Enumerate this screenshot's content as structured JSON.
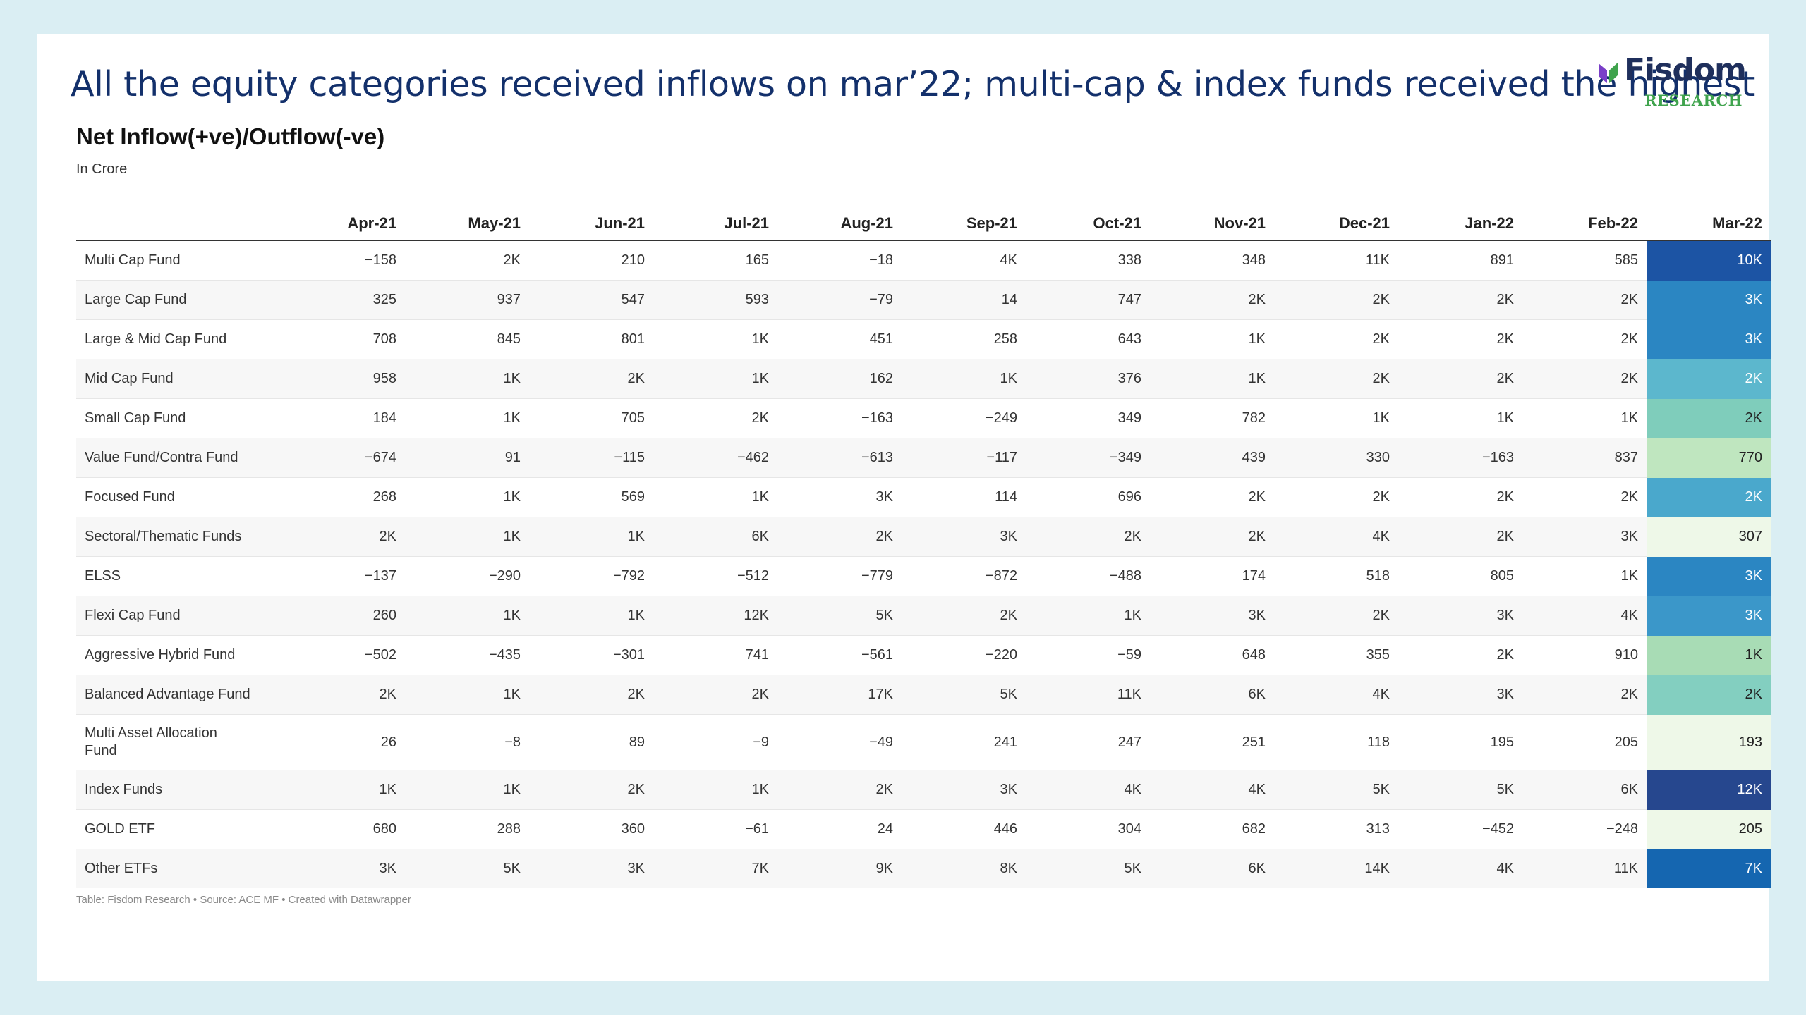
{
  "headline": "All the equity categories received inflows on mar’22; multi-cap & index funds received the highest",
  "logo": {
    "name": "Fisdom",
    "sub": "RESEARCH",
    "icon": "fisdom-logo-icon",
    "colors": {
      "mark": "#7a3fc8",
      "text": "#1f2f5c",
      "sub": "#3fa34d"
    }
  },
  "chart_data": {
    "type": "table",
    "title": "Net Inflow(+ve)/Outflow(-ve)",
    "subtitle": "In Crore",
    "columns": [
      "",
      "Apr-21",
      "May-21",
      "Jun-21",
      "Jul-21",
      "Aug-21",
      "Sep-21",
      "Oct-21",
      "Nov-21",
      "Dec-21",
      "Jan-22",
      "Feb-22",
      "Mar-22"
    ],
    "heatmap_column": "Mar-22",
    "rows": [
      [
        "Multi Cap Fund",
        "−158",
        "2K",
        "210",
        "165",
        "−18",
        "4K",
        "338",
        "348",
        "11K",
        "891",
        "585",
        "10K"
      ],
      [
        "Large Cap Fund",
        "325",
        "937",
        "547",
        "593",
        "−79",
        "14",
        "747",
        "2K",
        "2K",
        "2K",
        "2K",
        "3K"
      ],
      [
        "Large & Mid Cap Fund",
        "708",
        "845",
        "801",
        "1K",
        "451",
        "258",
        "643",
        "1K",
        "2K",
        "2K",
        "2K",
        "3K"
      ],
      [
        "Mid Cap Fund",
        "958",
        "1K",
        "2K",
        "1K",
        "162",
        "1K",
        "376",
        "1K",
        "2K",
        "2K",
        "2K",
        "2K"
      ],
      [
        "Small Cap Fund",
        "184",
        "1K",
        "705",
        "2K",
        "−163",
        "−249",
        "349",
        "782",
        "1K",
        "1K",
        "1K",
        "2K"
      ],
      [
        "Value Fund/Contra Fund",
        "−674",
        "91",
        "−115",
        "−462",
        "−613",
        "−117",
        "−349",
        "439",
        "330",
        "−163",
        "837",
        "770"
      ],
      [
        "Focused Fund",
        "268",
        "1K",
        "569",
        "1K",
        "3K",
        "114",
        "696",
        "2K",
        "2K",
        "2K",
        "2K",
        "2K"
      ],
      [
        "Sectoral/Thematic Funds",
        "2K",
        "1K",
        "1K",
        "6K",
        "2K",
        "3K",
        "2K",
        "2K",
        "4K",
        "2K",
        "3K",
        "307"
      ],
      [
        "ELSS",
        "−137",
        "−290",
        "−792",
        "−512",
        "−779",
        "−872",
        "−488",
        "174",
        "518",
        "805",
        "1K",
        "3K"
      ],
      [
        "Flexi Cap Fund",
        "260",
        "1K",
        "1K",
        "12K",
        "5K",
        "2K",
        "1K",
        "3K",
        "2K",
        "3K",
        "4K",
        "3K"
      ],
      [
        "Aggressive Hybrid Fund",
        "−502",
        "−435",
        "−301",
        "741",
        "−561",
        "−220",
        "−59",
        "648",
        "355",
        "2K",
        "910",
        "1K"
      ],
      [
        "Balanced Advantage Fund",
        "2K",
        "1K",
        "2K",
        "2K",
        "17K",
        "5K",
        "11K",
        "6K",
        "4K",
        "3K",
        "2K",
        "2K"
      ],
      [
        "Multi Asset Allocation Fund",
        "26",
        "−8",
        "89",
        "−9",
        "−49",
        "241",
        "247",
        "251",
        "118",
        "195",
        "205",
        "193"
      ],
      [
        "Index Funds",
        "1K",
        "1K",
        "2K",
        "1K",
        "2K",
        "3K",
        "4K",
        "4K",
        "5K",
        "5K",
        "6K",
        "12K"
      ],
      [
        "GOLD ETF",
        "680",
        "288",
        "360",
        "−61",
        "24",
        "446",
        "304",
        "682",
        "313",
        "−452",
        "−248",
        "205"
      ],
      [
        "Other ETFs",
        "3K",
        "5K",
        "3K",
        "7K",
        "9K",
        "8K",
        "5K",
        "6K",
        "14K",
        "4K",
        "11K",
        "7K"
      ]
    ],
    "heat_colors": [
      "#1c54a4",
      "#2b86c2",
      "#2b86c2",
      "#5cb7cd",
      "#7fcdbb",
      "#bfe6bf",
      "#4aa8cc",
      "#eef8e8",
      "#2b86c2",
      "#3b97c9",
      "#a8dcb5",
      "#83cfc0",
      "#eef8e8",
      "#26478e",
      "#eef8e8",
      "#1566b0"
    ],
    "heat_text_colors": [
      "#ffffff",
      "#ffffff",
      "#ffffff",
      "#ffffff",
      "#222222",
      "#222222",
      "#ffffff",
      "#222222",
      "#ffffff",
      "#ffffff",
      "#222222",
      "#222222",
      "#222222",
      "#ffffff",
      "#222222",
      "#ffffff"
    ]
  },
  "footer": "Table: Fisdom Research • Source: ACE MF • Created with Datawrapper"
}
